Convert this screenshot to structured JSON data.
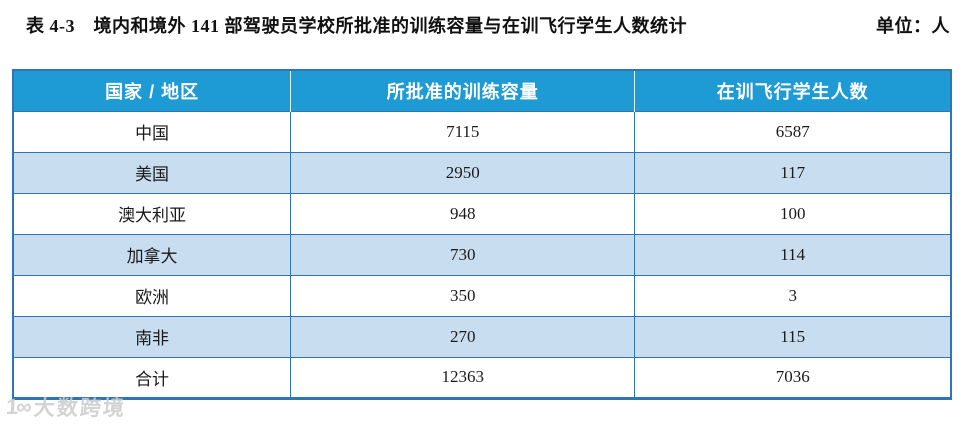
{
  "header": {
    "title": "表 4-3　境内和境外 141 部驾驶员学校所批准的训练容量与在训飞行学生人数统计",
    "unit": "单位：人"
  },
  "colors": {
    "header_bg": "#1E9AD5",
    "alt_row_bg": "#C9DDF1",
    "border": "#2E75B6",
    "header_text": "#FFFFFF",
    "watermark_gray": "#CCCCCC"
  },
  "watermark": {
    "logo": "1∞",
    "text": "大数跨境"
  },
  "chart_data": {
    "type": "table",
    "title": "表 4-3　境内和境外 141 部驾驶员学校所批准的训练容量与在训飞行学生人数统计",
    "unit": "单位：人",
    "columns": [
      "国家 / 地区",
      "所批准的训练容量",
      "在训飞行学生人数"
    ],
    "rows": [
      [
        "中国",
        "7115",
        "6587"
      ],
      [
        "美国",
        "2950",
        "117"
      ],
      [
        "澳大利亚",
        "948",
        "100"
      ],
      [
        "加拿大",
        "730",
        "114"
      ],
      [
        "欧洲",
        "350",
        "3"
      ],
      [
        "南非",
        "270",
        "115"
      ],
      [
        "合计",
        "12363",
        "7036"
      ]
    ]
  }
}
